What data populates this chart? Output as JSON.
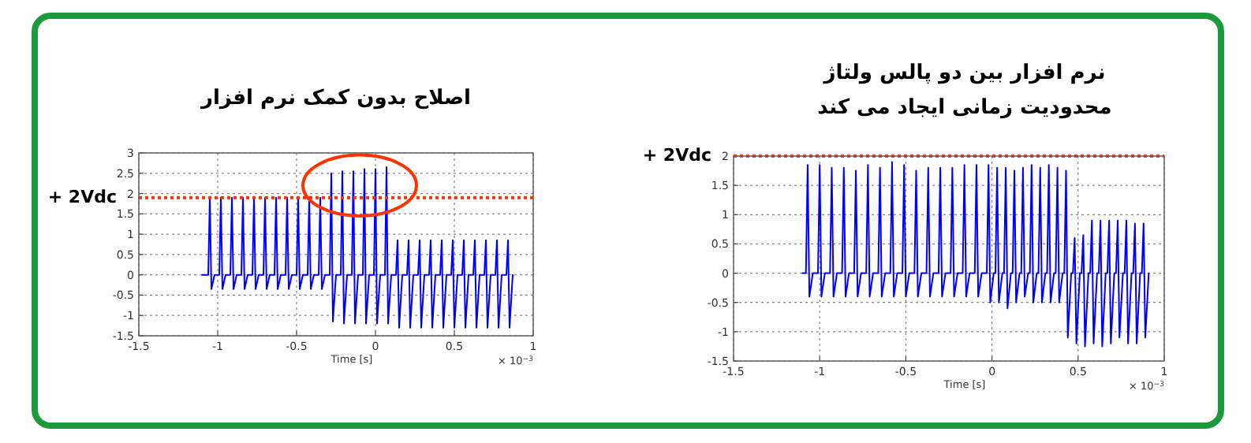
{
  "chart_data": [
    {
      "type": "line",
      "title": "اصلاح بدون کمک نرم افزار",
      "xlabel": "Time [s]",
      "x": [
        -1.1,
        -1.06,
        -1.05,
        -1.04,
        -1.02,
        -0.99,
        -0.98,
        -0.97,
        -0.95,
        -0.92,
        -0.91,
        -0.9,
        -0.88,
        -0.85,
        -0.84,
        -0.83,
        -0.81,
        -0.78,
        -0.77,
        -0.76,
        -0.74,
        -0.71,
        -0.7,
        -0.69,
        -0.67,
        -0.64,
        -0.63,
        -0.62,
        -0.6,
        -0.57,
        -0.56,
        -0.55,
        -0.53,
        -0.5,
        -0.49,
        -0.48,
        -0.46,
        -0.43,
        -0.42,
        -0.41,
        -0.39,
        -0.36,
        -0.35,
        -0.34,
        -0.32,
        -0.29,
        -0.28,
        -0.27,
        -0.25,
        -0.22,
        -0.21,
        -0.2,
        -0.18,
        -0.15,
        -0.14,
        -0.13,
        -0.11,
        -0.08,
        -0.07,
        -0.06,
        -0.04,
        -0.01,
        0,
        0.01,
        0.03,
        0.06,
        0.07,
        0.08,
        0.1,
        0.13,
        0.14,
        0.15,
        0.17,
        0.2,
        0.21,
        0.22,
        0.24,
        0.27,
        0.28,
        0.29,
        0.31,
        0.34,
        0.35,
        0.36,
        0.38,
        0.41,
        0.42,
        0.43,
        0.45,
        0.48,
        0.49,
        0.5,
        0.52,
        0.55,
        0.56,
        0.57,
        0.59,
        0.62,
        0.63,
        0.64,
        0.66,
        0.69,
        0.7,
        0.71,
        0.73,
        0.76,
        0.77,
        0.78,
        0.8,
        0.83,
        0.84,
        0.85,
        0.87
      ],
      "series": [
        {
          "color": "#0000ff",
          "values": [
            0,
            0,
            1.9,
            -0.35,
            0,
            0,
            1.9,
            -0.35,
            0,
            0,
            1.9,
            -0.35,
            0,
            0,
            1.9,
            -0.35,
            0,
            0,
            1.9,
            -0.35,
            0,
            0,
            1.9,
            -0.35,
            0,
            0,
            1.9,
            -0.35,
            0,
            0,
            1.9,
            -0.35,
            0,
            0,
            1.9,
            -0.35,
            0,
            0,
            1.9,
            -0.35,
            0,
            0,
            1.9,
            -0.35,
            0,
            0,
            2.5,
            -1.15,
            0,
            0,
            2.55,
            -1.2,
            0,
            0,
            2.55,
            -1.2,
            0,
            0,
            2.6,
            -1.2,
            0,
            0,
            2.6,
            -1.2,
            0,
            0,
            2.65,
            -1.2,
            0,
            0,
            0.85,
            -1.3,
            0,
            0,
            0.85,
            -1.3,
            0,
            0,
            0.85,
            -1.3,
            0,
            0,
            0.85,
            -1.3,
            0,
            0,
            0.85,
            -1.3,
            0,
            0,
            0.85,
            -1.3,
            0,
            0,
            0.85,
            -1.3,
            0,
            0,
            0.85,
            -1.3,
            0,
            0,
            0.85,
            -1.3,
            0,
            0,
            0.85,
            -1.3,
            0,
            0,
            0.85,
            -1.3,
            0
          ]
        }
      ],
      "xlim": [
        -1.5,
        1
      ],
      "xticks": [
        -1.5,
        -1,
        -0.5,
        0,
        0.5,
        1
      ],
      "ylim": [
        -1.5,
        3
      ],
      "yticks": [
        -1.5,
        -1,
        -0.5,
        0,
        0.5,
        1,
        1.5,
        2,
        2.5,
        3
      ],
      "grid": true,
      "ref_lines": [
        {
          "axis": "y",
          "value": 1.9,
          "label": "+ 2Vdc",
          "color": "#ff3300",
          "line_style": "dotted"
        }
      ],
      "annotations": [
        "× 10$^{−3}$"
      ]
    },
    {
      "type": "line",
      "title": "نرم افزار بین دو پالس ولتاژ\nمحدودیت زمانی ایجاد می کند",
      "xlabel": "Time [s]",
      "x": [
        -1.1,
        -1.08,
        -1.07,
        -1.06,
        -1.04,
        -1.01,
        -1,
        -0.99,
        -0.97,
        -0.94,
        -0.93,
        -0.92,
        -0.9,
        -0.87,
        -0.86,
        -0.85,
        -0.83,
        -0.8,
        -0.79,
        -0.78,
        -0.76,
        -0.73,
        -0.72,
        -0.71,
        -0.69,
        -0.66,
        -0.65,
        -0.64,
        -0.62,
        -0.59,
        -0.58,
        -0.57,
        -0.55,
        -0.52,
        -0.51,
        -0.5,
        -0.48,
        -0.45,
        -0.44,
        -0.43,
        -0.41,
        -0.38,
        -0.37,
        -0.36,
        -0.34,
        -0.31,
        -0.3,
        -0.29,
        -0.27,
        -0.24,
        -0.23,
        -0.22,
        -0.2,
        -0.17,
        -0.16,
        -0.15,
        -0.13,
        -0.1,
        -0.09,
        -0.08,
        -0.06,
        -0.03,
        -0.02,
        -0.01,
        0.01,
        0.02,
        0.03,
        0.04,
        0.06,
        0.07,
        0.08,
        0.09,
        0.11,
        0.12,
        0.13,
        0.14,
        0.16,
        0.17,
        0.18,
        0.19,
        0.21,
        0.22,
        0.23,
        0.24,
        0.26,
        0.27,
        0.28,
        0.29,
        0.31,
        0.32,
        0.33,
        0.34,
        0.36,
        0.37,
        0.38,
        0.39,
        0.41,
        0.42,
        0.43,
        0.44,
        0.46,
        0.47,
        0.48,
        0.49,
        0.51,
        0.52,
        0.53,
        0.54,
        0.56,
        0.57,
        0.58,
        0.59,
        0.61,
        0.62,
        0.63,
        0.64,
        0.66,
        0.67,
        0.68,
        0.69,
        0.71,
        0.72,
        0.73,
        0.74,
        0.76,
        0.77,
        0.78,
        0.79,
        0.81,
        0.82,
        0.83,
        0.84,
        0.86,
        0.87,
        0.88,
        0.89,
        0.91
      ],
      "series": [
        {
          "color": "#0000ff",
          "values": [
            0,
            0,
            1.85,
            -0.4,
            0,
            0,
            1.85,
            -0.4,
            0,
            0,
            1.8,
            -0.4,
            0,
            0,
            1.8,
            -0.4,
            0,
            0,
            1.75,
            -0.4,
            0,
            0,
            1.85,
            -0.4,
            0,
            0,
            1.8,
            -0.4,
            0,
            0,
            1.9,
            -0.4,
            0,
            0,
            1.85,
            -0.4,
            0,
            0,
            1.75,
            -0.4,
            0,
            0,
            1.8,
            -0.4,
            0,
            0,
            1.8,
            -0.4,
            0,
            0,
            1.8,
            -0.4,
            0,
            0,
            1.85,
            -0.4,
            0,
            0,
            1.85,
            -0.4,
            0,
            0,
            1.85,
            -0.5,
            0,
            0,
            1.8,
            -0.5,
            0,
            0,
            1.8,
            -0.6,
            0,
            0,
            1.75,
            -0.5,
            0,
            0,
            1.8,
            -0.4,
            0,
            0,
            1.85,
            -0.5,
            0,
            0,
            1.8,
            -0.5,
            0,
            0,
            1.85,
            -0.5,
            0,
            0,
            1.8,
            -0.5,
            0,
            0,
            1.75,
            -1.1,
            0,
            0,
            0.6,
            -1.2,
            0,
            0,
            0.65,
            -1.25,
            0,
            0,
            0.9,
            -1.2,
            0,
            0,
            0.9,
            -1.25,
            0,
            0,
            0.9,
            -1.2,
            0,
            0,
            0.9,
            -1.1,
            0,
            0,
            0.9,
            -1.2,
            0,
            0,
            0.85,
            -1.2,
            0,
            0,
            0.85,
            -1.1,
            0
          ]
        }
      ],
      "xlim": [
        -1.5,
        1
      ],
      "xticks": [
        -1.5,
        -1,
        -0.5,
        0,
        0.5,
        1
      ],
      "ylim": [
        -1.5,
        2
      ],
      "yticks": [
        -1.5,
        -1,
        -0.5,
        0,
        0.5,
        1,
        1.5,
        2
      ],
      "grid": true,
      "ref_lines": [
        {
          "axis": "y",
          "value": 2,
          "label": "+ 2Vdc",
          "color": "#ff3300",
          "line_style": "dotted"
        }
      ],
      "annotations": [
        "× 10$^{−3}$"
      ]
    }
  ]
}
